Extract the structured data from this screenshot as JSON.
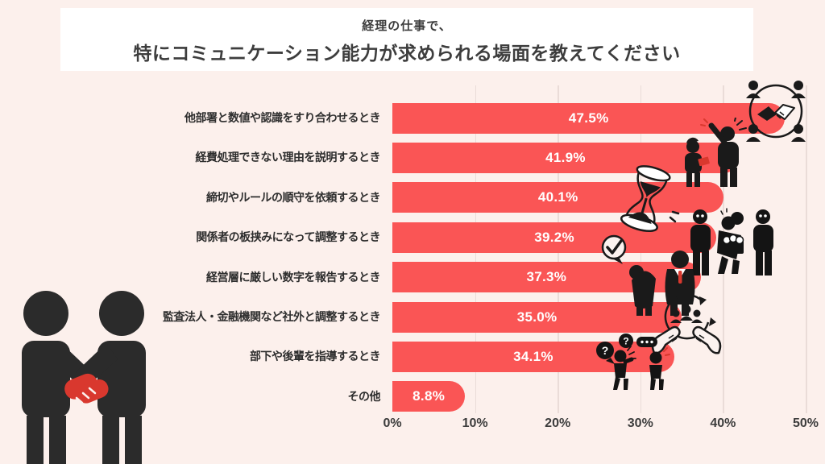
{
  "title": {
    "line1": "経理の仕事で、",
    "line2": "特にコミュニケーション能力が求められる場面を教えてください"
  },
  "chart_data": {
    "type": "bar",
    "orientation": "horizontal",
    "title": "経理の仕事で、特にコミュニケーション能力が求められる場面を教えてください",
    "categories": [
      "他部署と数値や認識をすり合わせるとき",
      "経費処理できない理由を説明するとき",
      "締切やルールの順守を依頼するとき",
      "関係者の板挟みになって調整するとき",
      "経営層に厳しい数字を報告するとき",
      "監査法人・金融機関など社外と調整するとき",
      "部下や後輩を指導するとき",
      "その他"
    ],
    "values": [
      47.5,
      41.9,
      40.1,
      39.2,
      37.3,
      35.0,
      34.1,
      8.8
    ],
    "value_labels": [
      "47.5%",
      "41.9%",
      "40.1%",
      "39.2%",
      "37.3%",
      "35.0%",
      "34.1%",
      "8.8%"
    ],
    "x_tick_labels": [
      "0%",
      "10%",
      "20%",
      "30%",
      "40%",
      "50%"
    ],
    "xlim": [
      0,
      50
    ],
    "grid": true,
    "legend": false,
    "bar_color": "#FA5555",
    "value_label_color": "#FFFFFF"
  },
  "icons": {
    "question_mark": "?",
    "names": [
      "teamwork-handshake-circle-icon",
      "scolding-person-icon",
      "hourglass-deadline-icon",
      "caught-in-middle-icon",
      "check-bubble-bowing-report-icon",
      "hands-holding-team-icon",
      "question-chat-icon",
      "handshake-people-illustration"
    ]
  },
  "colors": {
    "background": "#FCF0EC",
    "title_box": "#FFFFFF",
    "title_text": "#3D3D3D",
    "bar": "#FA5555",
    "gridline": "#EADCD8",
    "axis_text": "#3C3C3C",
    "illustration_black": "#2B2B2B",
    "illustration_red": "#D9382E"
  }
}
